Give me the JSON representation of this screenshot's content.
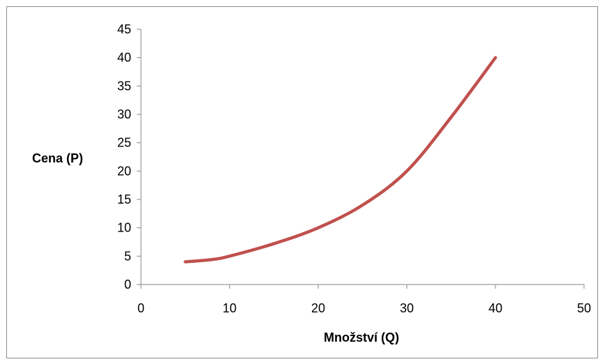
{
  "chart_data": {
    "type": "line",
    "xlabel": "Množství (Q)",
    "ylabel": "Cena (P)",
    "xlim": [
      0,
      50
    ],
    "ylim": [
      0,
      45
    ],
    "xticks": [
      0,
      10,
      20,
      30,
      40,
      50
    ],
    "yticks": [
      0,
      5,
      10,
      15,
      20,
      25,
      30,
      35,
      40,
      45
    ],
    "grid": false,
    "legend": "none",
    "series": [
      {
        "color": "#c0504d",
        "x": [
          5,
          8,
          10,
          15,
          20,
          25,
          30,
          35,
          40
        ],
        "y": [
          4,
          4.4,
          5,
          7.2,
          10,
          14,
          20,
          29.5,
          40
        ]
      }
    ]
  }
}
